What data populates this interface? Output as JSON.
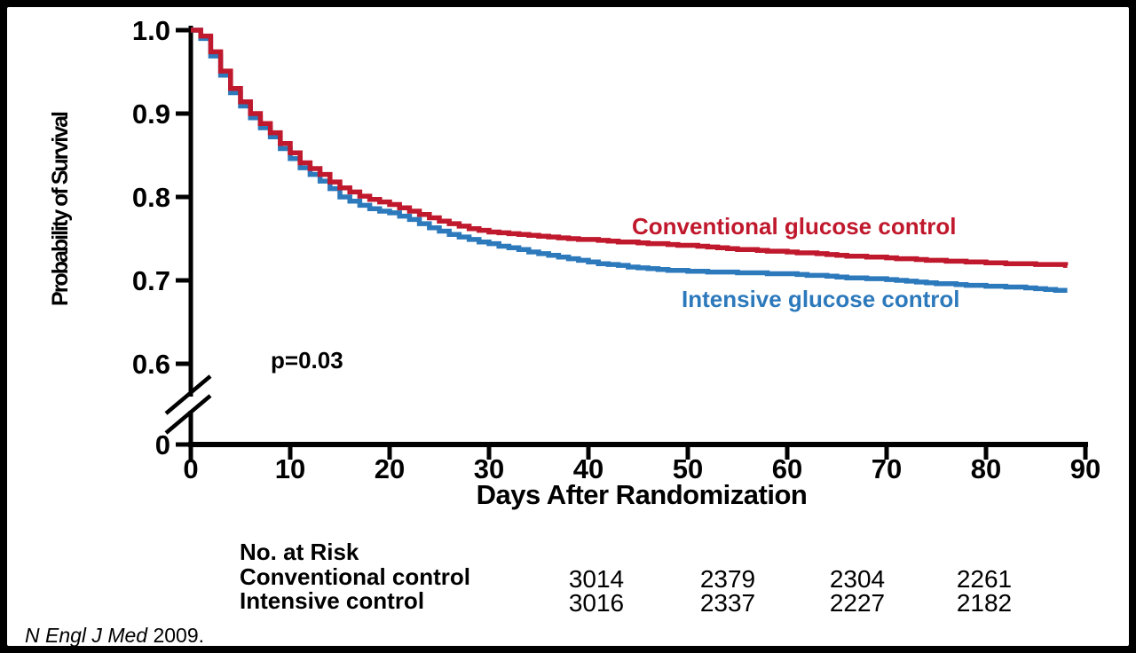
{
  "figure": {
    "p_value": "p=0.03",
    "citation_journal": "N Engl J Med",
    "citation_year": " 2009."
  },
  "chart_data": {
    "type": "line",
    "subtype": "kaplan-meier-step",
    "title": "",
    "xlabel": "Days After Randomization",
    "ylabel": "Probability of Survival",
    "xlim": [
      0,
      90
    ],
    "ylim_visible": [
      0.6,
      1.0
    ],
    "axis_break_between": [
      0,
      0.6
    ],
    "grid": false,
    "legend_position": "inline-labels",
    "x_tick_values": [
      0,
      10,
      20,
      30,
      40,
      50,
      60,
      70,
      80,
      90
    ],
    "x_tick_labels": [
      "0",
      "10",
      "20",
      "30",
      "40",
      "50",
      "60",
      "70",
      "80",
      "90"
    ],
    "y_tick_values": [
      1.0,
      0.9,
      0.8,
      0.7,
      0.6,
      0
    ],
    "y_tick_labels": [
      "1.0",
      "0.9",
      "0.8",
      "0.7",
      "0.6",
      "0"
    ],
    "x_unit_days": "index of values arrays = day after randomization",
    "series": [
      {
        "name": "Conventional glucose control",
        "color": "#c0182c",
        "values": [
          1.0,
          0.993,
          0.974,
          0.951,
          0.93,
          0.914,
          0.9,
          0.888,
          0.877,
          0.864,
          0.853,
          0.841,
          0.834,
          0.827,
          0.818,
          0.811,
          0.806,
          0.801,
          0.797,
          0.794,
          0.791,
          0.787,
          0.783,
          0.779,
          0.775,
          0.771,
          0.768,
          0.765,
          0.762,
          0.76,
          0.758,
          0.757,
          0.756,
          0.755,
          0.754,
          0.753,
          0.752,
          0.751,
          0.75,
          0.749,
          0.749,
          0.748,
          0.747,
          0.746,
          0.746,
          0.745,
          0.744,
          0.744,
          0.743,
          0.742,
          0.742,
          0.741,
          0.74,
          0.739,
          0.738,
          0.737,
          0.737,
          0.736,
          0.735,
          0.735,
          0.734,
          0.733,
          0.733,
          0.732,
          0.731,
          0.73,
          0.729,
          0.729,
          0.728,
          0.728,
          0.727,
          0.726,
          0.726,
          0.725,
          0.724,
          0.724,
          0.723,
          0.723,
          0.722,
          0.722,
          0.721,
          0.721,
          0.72,
          0.72,
          0.72,
          0.719,
          0.719,
          0.719,
          0.718
        ]
      },
      {
        "name": "Intensive glucose control",
        "color": "#2c79bc",
        "values": [
          1.0,
          0.99,
          0.969,
          0.946,
          0.925,
          0.909,
          0.895,
          0.883,
          0.872,
          0.858,
          0.846,
          0.835,
          0.827,
          0.819,
          0.81,
          0.8,
          0.795,
          0.79,
          0.786,
          0.783,
          0.781,
          0.777,
          0.773,
          0.768,
          0.763,
          0.759,
          0.755,
          0.752,
          0.749,
          0.746,
          0.744,
          0.741,
          0.739,
          0.737,
          0.734,
          0.732,
          0.73,
          0.728,
          0.726,
          0.724,
          0.722,
          0.72,
          0.719,
          0.718,
          0.716,
          0.715,
          0.714,
          0.713,
          0.712,
          0.712,
          0.711,
          0.711,
          0.71,
          0.71,
          0.71,
          0.709,
          0.709,
          0.709,
          0.708,
          0.708,
          0.708,
          0.707,
          0.706,
          0.706,
          0.705,
          0.704,
          0.703,
          0.703,
          0.702,
          0.702,
          0.701,
          0.7,
          0.699,
          0.698,
          0.697,
          0.696,
          0.696,
          0.695,
          0.694,
          0.694,
          0.693,
          0.693,
          0.692,
          0.692,
          0.691,
          0.69,
          0.689,
          0.688,
          0.688
        ]
      }
    ]
  },
  "risk_table": {
    "title": "No. at Risk",
    "rows": [
      {
        "label": "Conventional control",
        "values": [
          "3014",
          "2379",
          "2304",
          "2261"
        ]
      },
      {
        "label": "Intensive control",
        "values": [
          "3016",
          "2337",
          "2227",
          "2182"
        ]
      }
    ]
  }
}
